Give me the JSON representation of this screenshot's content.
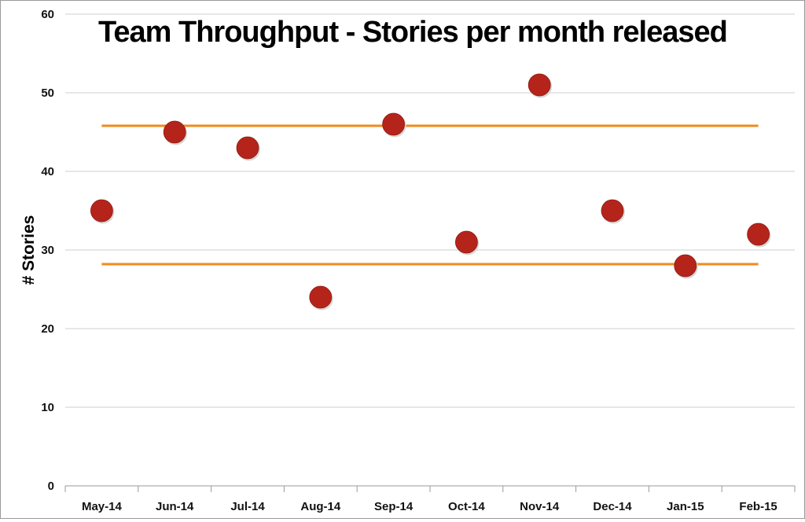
{
  "chart_data": {
    "type": "scatter",
    "title": "Team Throughput - Stories per month released",
    "xlabel": "",
    "ylabel": "# Stories",
    "categories": [
      "May-14",
      "Jun-14",
      "Jul-14",
      "Aug-14",
      "Sep-14",
      "Oct-14",
      "Nov-14",
      "Dec-14",
      "Jan-15",
      "Feb-15"
    ],
    "series": [
      {
        "values": [
          35,
          45,
          43,
          24,
          46,
          31,
          51,
          35,
          28,
          32
        ],
        "color": "#b5241a"
      }
    ],
    "reference_lines": [
      {
        "value": 45.8,
        "color": "#f08a1c"
      },
      {
        "value": 28.2,
        "color": "#f08a1c"
      }
    ],
    "ylim": [
      0,
      60
    ],
    "yticks": [
      0,
      10,
      20,
      30,
      40,
      50,
      60
    ],
    "grid": "horizontal",
    "legend": "none"
  }
}
